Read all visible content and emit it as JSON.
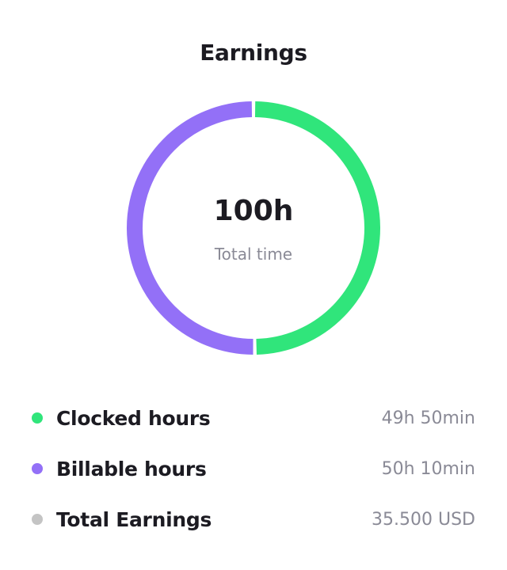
{
  "chart_data": {
    "type": "pie",
    "title": "Earnings",
    "center_value": "100h",
    "center_label": "Total time",
    "slices": [
      {
        "name": "Clocked hours",
        "value": 49.83,
        "display": "49h 50min",
        "color": "#30e57b"
      },
      {
        "name": "Billable hours",
        "value": 50.17,
        "display": "50h 10min",
        "color": "#9370f7"
      }
    ]
  },
  "legend": [
    {
      "label": "Clocked hours",
      "value": "49h 50min",
      "color": "#30e57b"
    },
    {
      "label": "Billable hours",
      "value": "50h 10min",
      "color": "#9370f7"
    },
    {
      "label": "Total Earnings",
      "value": "35.500 USD",
      "color": "#c4c4c4"
    }
  ]
}
